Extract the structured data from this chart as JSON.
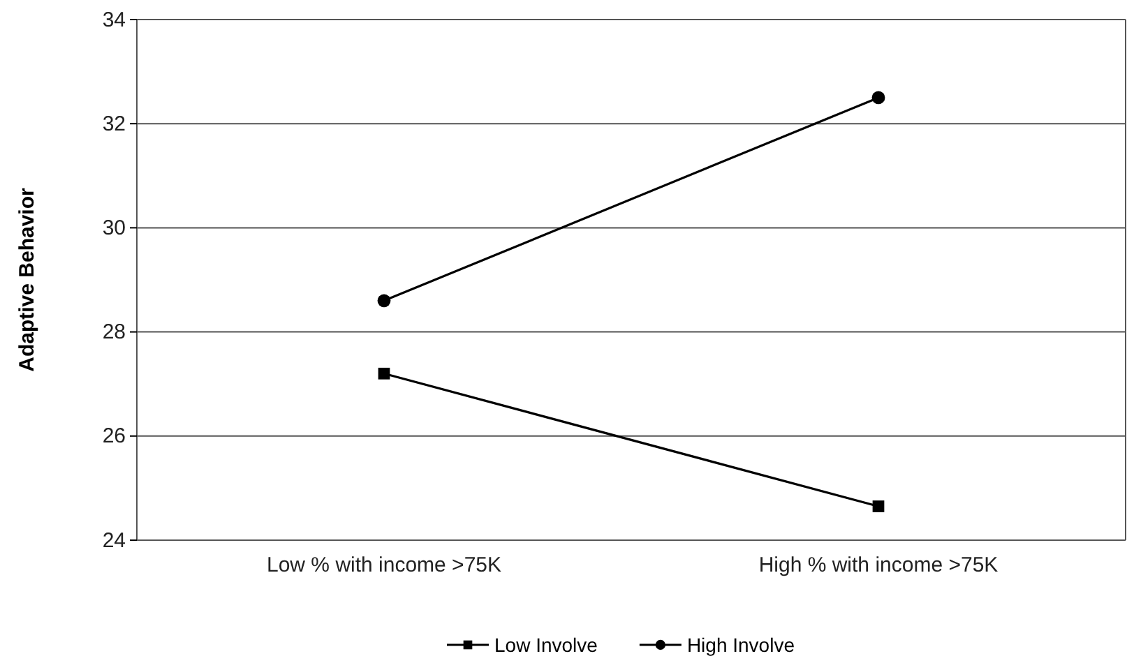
{
  "chart_data": {
    "type": "line",
    "ylabel": "Adaptive Behavior",
    "categories": [
      "Low % with income >75K",
      "High % with income >75K"
    ],
    "series": [
      {
        "name": "Low Involve",
        "color": "#000000",
        "marker": "square",
        "values": [
          27.2,
          24.65
        ]
      },
      {
        "name": "High Involve",
        "color": "#000000",
        "marker": "circle",
        "values": [
          28.6,
          32.5
        ]
      }
    ],
    "ylim": [
      24,
      34
    ],
    "yticks": [
      24,
      26,
      28,
      30,
      32,
      34
    ],
    "grid": "y",
    "legend": "bottom"
  }
}
